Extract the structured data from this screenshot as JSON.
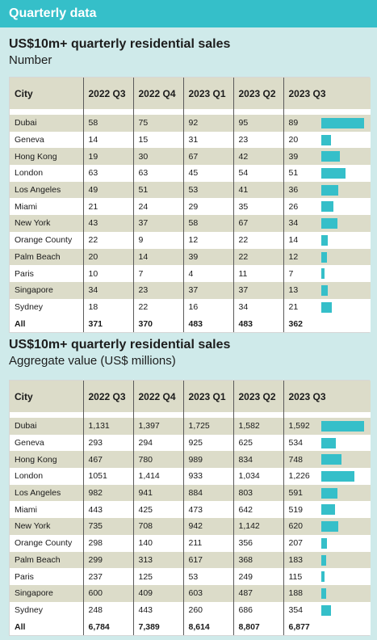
{
  "banner": {
    "title": "Quarterly data"
  },
  "colors": {
    "accent": "#35bfc9",
    "band": "#dcdcc9",
    "background": "#cfeaea"
  },
  "sections": [
    {
      "title": "US$10m+ quarterly residential sales",
      "subtitle": "Number",
      "headers": [
        "City",
        "2022 Q3",
        "2022 Q4",
        "2023 Q1",
        "2023 Q2",
        "2023 Q3"
      ],
      "rows": [
        [
          "Dubai",
          "58",
          "75",
          "92",
          "95",
          "89"
        ],
        [
          "Geneva",
          "14",
          "15",
          "31",
          "23",
          "20"
        ],
        [
          "Hong Kong",
          "19",
          "30",
          "67",
          "42",
          "39"
        ],
        [
          "London",
          "63",
          "63",
          "45",
          "54",
          "51"
        ],
        [
          "Los Angeles",
          "49",
          "51",
          "53",
          "41",
          "36"
        ],
        [
          "Miami",
          "21",
          "24",
          "29",
          "35",
          "26"
        ],
        [
          "New York",
          "43",
          "37",
          "58",
          "67",
          "34"
        ],
        [
          "Orange County",
          "22",
          "9",
          "12",
          "22",
          "14"
        ],
        [
          "Palm Beach",
          "20",
          "14",
          "39",
          "22",
          "12"
        ],
        [
          "Paris",
          "10",
          "7",
          "4",
          "11",
          "7"
        ],
        [
          "Singapore",
          "34",
          "23",
          "37",
          "37",
          "13"
        ],
        [
          "Sydney",
          "18",
          "22",
          "16",
          "34",
          "21"
        ]
      ],
      "bar_values": [
        89,
        20,
        39,
        51,
        36,
        26,
        34,
        14,
        12,
        7,
        13,
        21
      ],
      "bar_max": 89,
      "total": [
        "All",
        "371",
        "370",
        "483",
        "483",
        "362"
      ]
    },
    {
      "title": "US$10m+ quarterly residential sales",
      "subtitle": "Aggregate value (US$ millions)",
      "headers": [
        "City",
        "2022 Q3",
        "2022 Q4",
        "2023 Q1",
        "2023 Q2",
        "2023 Q3"
      ],
      "rows": [
        [
          "Dubai",
          "1,131",
          "1,397",
          "1,725",
          "1,582",
          "1,592"
        ],
        [
          "Geneva",
          "293",
          "294",
          "925",
          "625",
          "534"
        ],
        [
          "Hong Kong",
          "467",
          "780",
          "989",
          "834",
          "748"
        ],
        [
          "London",
          "1051",
          "1,414",
          "933",
          "1,034",
          "1,226"
        ],
        [
          "Los Angeles",
          "982",
          "941",
          "884",
          "803",
          "591"
        ],
        [
          "Miami",
          "443",
          "425",
          "473",
          "642",
          "519"
        ],
        [
          "New York",
          "735",
          "708",
          "942",
          "1,142",
          "620"
        ],
        [
          "Orange County",
          "298",
          "140",
          "211",
          "356",
          "207"
        ],
        [
          "Palm Beach",
          "299",
          "313",
          "617",
          "368",
          "183"
        ],
        [
          "Paris",
          "237",
          "125",
          "53",
          "249",
          "115"
        ],
        [
          "Singapore",
          "600",
          "409",
          "603",
          "487",
          "188"
        ],
        [
          "Sydney",
          "248",
          "443",
          "260",
          "686",
          "354"
        ]
      ],
      "bar_values": [
        1592,
        534,
        748,
        1226,
        591,
        519,
        620,
        207,
        183,
        115,
        188,
        354
      ],
      "bar_max": 1592,
      "total": [
        "All",
        "6,784",
        "7,389",
        "8,614",
        "8,807",
        "6,877"
      ]
    }
  ]
}
